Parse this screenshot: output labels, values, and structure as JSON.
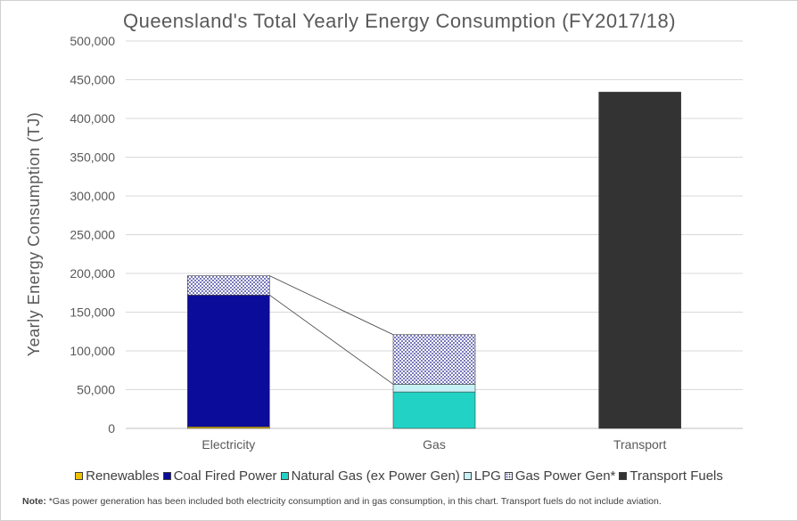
{
  "chart_data": {
    "type": "bar",
    "stacked": true,
    "title": "Queensland's Total Yearly Energy Consumption (FY2017/18)",
    "ylabel": "Yearly Energy Consumption (TJ)",
    "xlabel": "",
    "ylim": [
      0,
      500000
    ],
    "yticks": [
      0,
      50000,
      100000,
      150000,
      200000,
      250000,
      300000,
      350000,
      400000,
      450000,
      500000
    ],
    "ytick_labels": [
      "0",
      "50,000",
      "100,000",
      "150,000",
      "200,000",
      "250,000",
      "300,000",
      "350,000",
      "400,000",
      "450,000",
      "500,000"
    ],
    "grid": true,
    "legend_position": "bottom",
    "categories": [
      "Electricity",
      "Gas",
      "Transport"
    ],
    "series": [
      {
        "name": "Renewables",
        "values": [
          2000,
          0,
          0
        ],
        "color": "#f2c200",
        "pattern": "solid"
      },
      {
        "name": "Coal Fired Power",
        "values": [
          170000,
          0,
          0
        ],
        "color": "#0c0c9a",
        "pattern": "solid"
      },
      {
        "name": "Natural Gas (ex Power Gen)",
        "values": [
          0,
          47000,
          0
        ],
        "color": "#22d3c5",
        "pattern": "solid"
      },
      {
        "name": "LPG",
        "values": [
          0,
          10000,
          0
        ],
        "color": "#c6f1f5",
        "pattern": "solid"
      },
      {
        "name": "Gas Power Gen*",
        "values": [
          25000,
          64000,
          0
        ],
        "color": "#1a1a8c",
        "pattern": "dots"
      },
      {
        "name": "Transport Fuels",
        "values": [
          0,
          0,
          434000
        ],
        "color": "#333333",
        "pattern": "solid"
      }
    ]
  },
  "note": {
    "label": "Note:",
    "text": " *Gas power generation has been included both electricity consumption and in gas consumption, in this chart. Transport fuels do not include aviation."
  }
}
